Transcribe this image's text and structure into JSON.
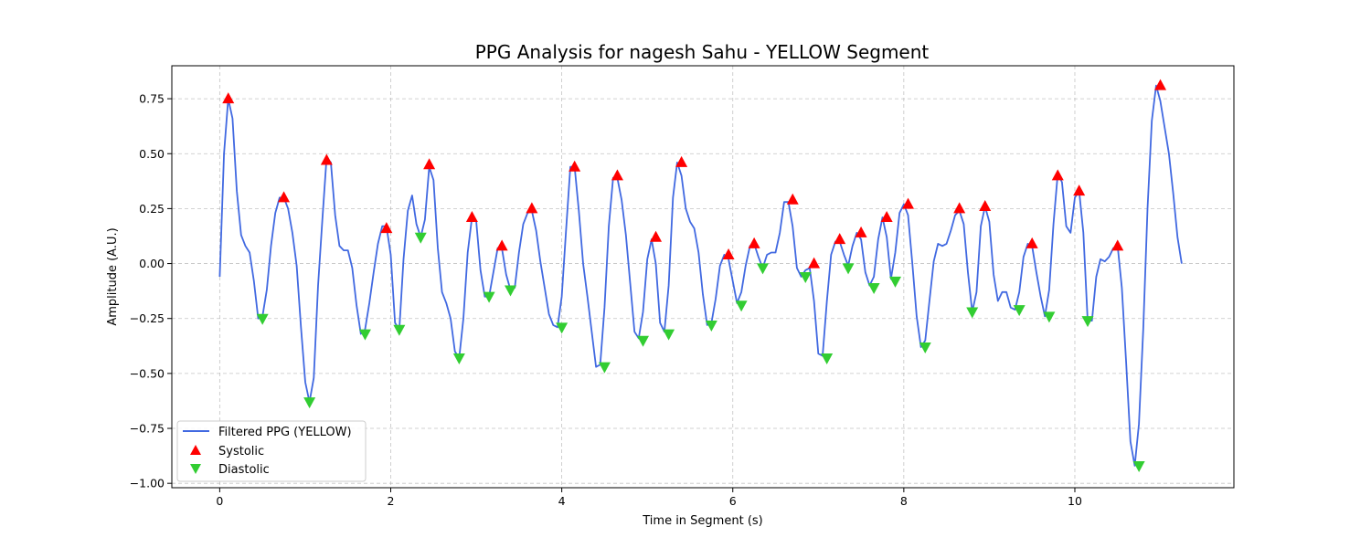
{
  "chart_data": {
    "type": "line",
    "title": "PPG Analysis for nagesh Sahu - YELLOW Segment",
    "xlabel": "Time in Segment (s)",
    "ylabel": "Amplitude (A.U.)",
    "xlim": [
      -0.56,
      11.86
    ],
    "ylim": [
      -1.02,
      0.9
    ],
    "xticks": [
      0,
      2,
      4,
      6,
      8,
      10
    ],
    "yticks": [
      -1.0,
      -0.75,
      -0.5,
      -0.25,
      0.0,
      0.25,
      0.5,
      0.75
    ],
    "ytick_labels": [
      "−1.00",
      "−0.75",
      "−0.50",
      "−0.25",
      "0.00",
      "0.25",
      "0.50",
      "0.75"
    ],
    "grid": true,
    "legend_position": "lower-left",
    "colors": {
      "line": "#4169e1",
      "systolic": "#ff0000",
      "diastolic": "#32cd32"
    },
    "series": [
      {
        "name": "Filtered PPG (YELLOW)",
        "kind": "line",
        "x": [
          0.0,
          0.05,
          0.1,
          0.15,
          0.2,
          0.25,
          0.3,
          0.35,
          0.4,
          0.45,
          0.5,
          0.55,
          0.6,
          0.65,
          0.7,
          0.75,
          0.8,
          0.85,
          0.9,
          0.95,
          1.0,
          1.05,
          1.1,
          1.15,
          1.2,
          1.25,
          1.3,
          1.35,
          1.4,
          1.45,
          1.5,
          1.55,
          1.6,
          1.65,
          1.7,
          1.75,
          1.8,
          1.85,
          1.9,
          1.95,
          2.0,
          2.05,
          2.1,
          2.15,
          2.2,
          2.25,
          2.3,
          2.35,
          2.4,
          2.45,
          2.5,
          2.55,
          2.6,
          2.65,
          2.7,
          2.75,
          2.8,
          2.85,
          2.9,
          2.95,
          3.0,
          3.05,
          3.1,
          3.15,
          3.2,
          3.25,
          3.3,
          3.35,
          3.4,
          3.45,
          3.5,
          3.55,
          3.6,
          3.65,
          3.7,
          3.75,
          3.8,
          3.85,
          3.9,
          3.95,
          4.0,
          4.05,
          4.1,
          4.15,
          4.2,
          4.25,
          4.3,
          4.35,
          4.4,
          4.45,
          4.5,
          4.55,
          4.6,
          4.65,
          4.7,
          4.75,
          4.8,
          4.85,
          4.9,
          4.95,
          5.0,
          5.05,
          5.1,
          5.15,
          5.2,
          5.25,
          5.3,
          5.35,
          5.4,
          5.45,
          5.5,
          5.55,
          5.6,
          5.65,
          5.7,
          5.75,
          5.8,
          5.85,
          5.9,
          5.95,
          6.0,
          6.05,
          6.1,
          6.15,
          6.2,
          6.25,
          6.3,
          6.35,
          6.4,
          6.45,
          6.5,
          6.55,
          6.6,
          6.65,
          6.7,
          6.75,
          6.8,
          6.85,
          6.9,
          6.95,
          7.0,
          7.05,
          7.1,
          7.15,
          7.2,
          7.25,
          7.3,
          7.35,
          7.4,
          7.45,
          7.5,
          7.55,
          7.6,
          7.65,
          7.7,
          7.75,
          7.8,
          7.85,
          7.9,
          7.95,
          8.0,
          8.05,
          8.1,
          8.15,
          8.2,
          8.25,
          8.3,
          8.35,
          8.4,
          8.45,
          8.5,
          8.55,
          8.6,
          8.65,
          8.7,
          8.75,
          8.8,
          8.85,
          8.9,
          8.95,
          9.0,
          9.05,
          9.1,
          9.15,
          9.2,
          9.25,
          9.3,
          9.35,
          9.4,
          9.45,
          9.5,
          9.55,
          9.6,
          9.65,
          9.7,
          9.75,
          9.8,
          9.85,
          9.9,
          9.95,
          10.0,
          10.05,
          10.1,
          10.15,
          10.2,
          10.25,
          10.3,
          10.35,
          10.4,
          10.45,
          10.5,
          10.55,
          10.6,
          10.65,
          10.7,
          10.75,
          10.8,
          10.85,
          10.9,
          10.95,
          11.0,
          11.05,
          11.1,
          11.15,
          11.2,
          11.25
        ],
        "y": [
          -0.06,
          0.5,
          0.75,
          0.66,
          0.33,
          0.13,
          0.08,
          0.05,
          -0.08,
          -0.25,
          -0.24,
          -0.12,
          0.08,
          0.23,
          0.3,
          0.3,
          0.25,
          0.14,
          -0.01,
          -0.29,
          -0.54,
          -0.63,
          -0.52,
          -0.1,
          0.2,
          0.48,
          0.46,
          0.22,
          0.08,
          0.06,
          0.06,
          -0.02,
          -0.19,
          -0.32,
          -0.3,
          -0.18,
          -0.04,
          0.09,
          0.17,
          0.17,
          0.04,
          -0.27,
          -0.3,
          0.02,
          0.24,
          0.31,
          0.18,
          0.12,
          0.2,
          0.44,
          0.38,
          0.07,
          -0.13,
          -0.18,
          -0.25,
          -0.4,
          -0.43,
          -0.25,
          0.05,
          0.21,
          0.19,
          -0.03,
          -0.15,
          -0.15,
          -0.04,
          0.07,
          0.07,
          -0.05,
          -0.12,
          -0.11,
          0.05,
          0.18,
          0.23,
          0.24,
          0.15,
          0.01,
          -0.11,
          -0.23,
          -0.28,
          -0.29,
          -0.15,
          0.15,
          0.44,
          0.44,
          0.24,
          0.0,
          -0.15,
          -0.31,
          -0.47,
          -0.46,
          -0.2,
          0.17,
          0.39,
          0.39,
          0.29,
          0.13,
          -0.09,
          -0.31,
          -0.34,
          -0.22,
          0.02,
          0.11,
          0.0,
          -0.27,
          -0.31,
          -0.1,
          0.3,
          0.46,
          0.4,
          0.25,
          0.19,
          0.16,
          0.05,
          -0.14,
          -0.28,
          -0.27,
          -0.16,
          -0.01,
          0.04,
          0.02,
          -0.08,
          -0.18,
          -0.13,
          -0.01,
          0.08,
          0.09,
          0.03,
          -0.02,
          0.04,
          0.05,
          0.05,
          0.14,
          0.28,
          0.28,
          0.17,
          -0.02,
          -0.06,
          -0.03,
          -0.02,
          -0.17,
          -0.41,
          -0.42,
          -0.17,
          0.04,
          0.1,
          0.1,
          0.04,
          -0.01,
          0.08,
          0.14,
          0.11,
          -0.04,
          -0.1,
          -0.06,
          0.11,
          0.21,
          0.12,
          -0.07,
          0.05,
          0.23,
          0.27,
          0.22,
          0.0,
          -0.24,
          -0.38,
          -0.35,
          -0.17,
          0.01,
          0.09,
          0.08,
          0.09,
          0.15,
          0.22,
          0.24,
          0.18,
          -0.04,
          -0.22,
          -0.13,
          0.17,
          0.26,
          0.19,
          -0.05,
          -0.17,
          -0.13,
          -0.13,
          -0.2,
          -0.21,
          -0.13,
          0.03,
          0.09,
          0.08,
          -0.04,
          -0.15,
          -0.24,
          -0.12,
          0.18,
          0.41,
          0.37,
          0.17,
          0.14,
          0.3,
          0.33,
          0.14,
          -0.26,
          -0.26,
          -0.06,
          0.02,
          0.01,
          0.03,
          0.07,
          0.08,
          -0.11,
          -0.45,
          -0.81,
          -0.92,
          -0.73,
          -0.3,
          0.25,
          0.65,
          0.81,
          0.74,
          0.62,
          0.5,
          0.32,
          0.12,
          0.0
        ]
      },
      {
        "name": "Systolic",
        "kind": "markers",
        "x": [
          0.1,
          0.75,
          1.25,
          1.95,
          2.45,
          2.95,
          3.3,
          3.65,
          4.15,
          4.65,
          5.1,
          5.4,
          5.95,
          6.25,
          6.7,
          6.95,
          7.25,
          7.5,
          7.8,
          8.05,
          8.65,
          8.95,
          9.5,
          9.8,
          10.05,
          10.5,
          11.0
        ],
        "y": [
          0.75,
          0.3,
          0.47,
          0.16,
          0.45,
          0.21,
          0.08,
          0.25,
          0.44,
          0.4,
          0.12,
          0.46,
          0.04,
          0.09,
          0.29,
          0.0,
          0.11,
          0.14,
          0.21,
          0.27,
          0.25,
          0.26,
          0.09,
          0.4,
          0.33,
          0.08,
          0.81
        ]
      },
      {
        "name": "Diastolic",
        "kind": "markers",
        "x": [
          0.5,
          1.05,
          1.7,
          2.1,
          2.35,
          2.8,
          3.15,
          3.4,
          4.0,
          4.5,
          4.95,
          5.25,
          5.75,
          6.1,
          6.35,
          6.85,
          7.1,
          7.35,
          7.65,
          7.9,
          8.25,
          8.8,
          9.35,
          9.7,
          10.15,
          10.75
        ],
        "y": [
          -0.25,
          -0.63,
          -0.32,
          -0.3,
          0.12,
          -0.43,
          -0.15,
          -0.12,
          -0.29,
          -0.47,
          -0.35,
          -0.32,
          -0.28,
          -0.19,
          -0.02,
          -0.06,
          -0.43,
          -0.02,
          -0.11,
          -0.08,
          -0.38,
          -0.22,
          -0.21,
          -0.24,
          -0.26,
          -0.92
        ]
      }
    ]
  }
}
